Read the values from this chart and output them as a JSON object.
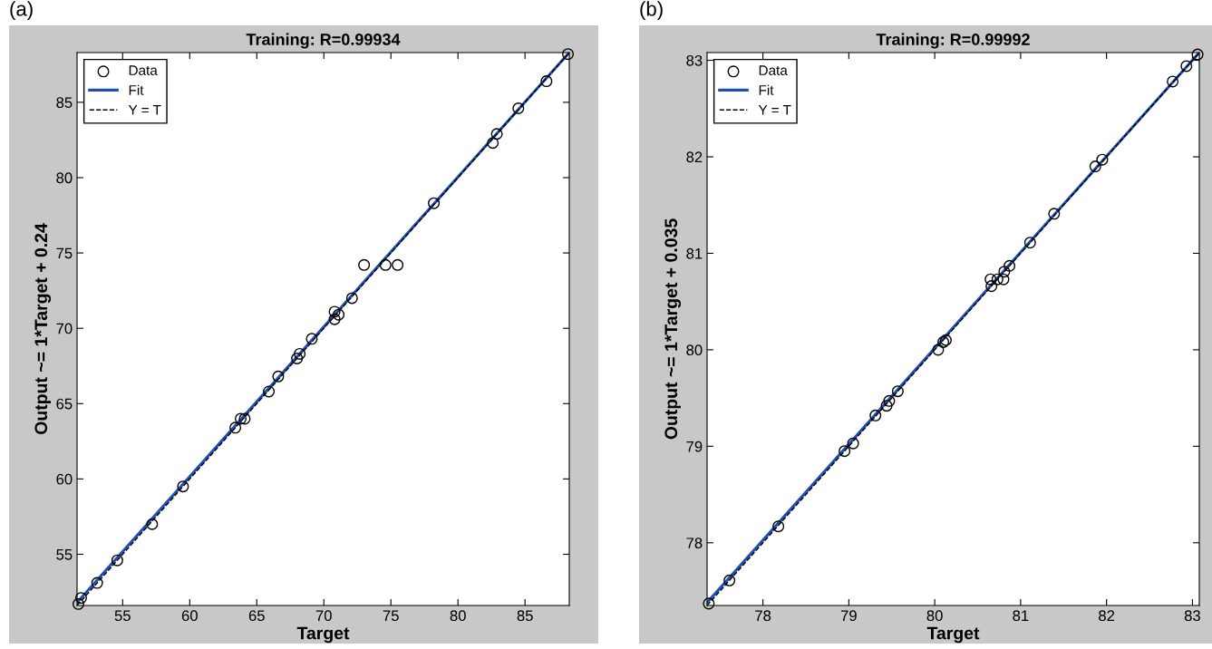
{
  "chart_data": [
    {
      "type": "scatter",
      "title": "Training: R=0.99934",
      "xlabel": "Target",
      "ylabel": "Output ~= 1*Target + 0.24",
      "annotations": [
        "(a)"
      ],
      "xlim": [
        51.6,
        88.3
      ],
      "ylim": [
        51.6,
        88.3
      ],
      "xticks": [
        55,
        60,
        65,
        70,
        75,
        80,
        85
      ],
      "yticks": [
        55,
        60,
        65,
        70,
        75,
        80,
        85
      ],
      "grid": false,
      "legend": "top left",
      "series": [
        {
          "name": "Data",
          "marker": "circle",
          "color": "#000000",
          "x": [
            51.7,
            51.9,
            53.1,
            54.6,
            57.2,
            59.5,
            63.4,
            63.8,
            64.1,
            65.9,
            66.6,
            68.0,
            68.2,
            69.1,
            70.8,
            70.8,
            71.1,
            72.1,
            73.0,
            74.6,
            75.5,
            78.2,
            82.6,
            82.9,
            84.5,
            86.6,
            88.2
          ],
          "values": [
            51.7,
            52.1,
            53.1,
            54.6,
            57.0,
            59.5,
            63.4,
            64.0,
            64.0,
            65.8,
            66.8,
            68.0,
            68.3,
            69.3,
            70.6,
            71.1,
            70.9,
            72.0,
            74.2,
            74.2,
            74.2,
            78.3,
            82.3,
            82.9,
            84.6,
            86.4,
            88.2
          ]
        },
        {
          "name": "Fit",
          "type": "line",
          "line_style": "solid",
          "color": "#1f4fb4",
          "x": [
            51.6,
            88.3
          ],
          "values": [
            51.8,
            88.3
          ]
        },
        {
          "name": "Y = T",
          "type": "line",
          "line_style": "dashed",
          "color": "#000000",
          "x": [
            51.6,
            88.3
          ],
          "values": [
            51.6,
            88.3
          ]
        }
      ]
    },
    {
      "type": "scatter",
      "title": "Training: R=0.99992",
      "xlabel": "Target",
      "ylabel": "Output ~= 1*Target + 0.035",
      "annotations": [
        "(b)"
      ],
      "xlim": [
        77.35,
        83.08
      ],
      "ylim": [
        77.35,
        83.08
      ],
      "xticks": [
        78,
        79,
        80,
        81,
        82,
        83
      ],
      "yticks": [
        78,
        79,
        80,
        81,
        82,
        83
      ],
      "grid": false,
      "legend": "top left",
      "series": [
        {
          "name": "Data",
          "marker": "circle",
          "color": "#000000",
          "x": [
            77.37,
            77.61,
            78.18,
            78.95,
            79.05,
            79.31,
            79.44,
            79.47,
            79.57,
            80.04,
            80.1,
            80.13,
            80.65,
            80.66,
            80.73,
            80.8,
            80.81,
            80.87,
            81.11,
            81.39,
            81.87,
            81.95,
            82.77,
            82.93,
            83.06
          ],
          "values": [
            77.37,
            77.61,
            78.17,
            78.95,
            79.03,
            79.32,
            79.42,
            79.47,
            79.57,
            80.0,
            80.08,
            80.1,
            80.73,
            80.66,
            80.73,
            80.73,
            80.81,
            80.87,
            81.11,
            81.41,
            81.9,
            81.97,
            82.78,
            82.94,
            83.06
          ]
        },
        {
          "name": "Fit",
          "type": "line",
          "line_style": "solid",
          "color": "#1f4fb4",
          "x": [
            77.35,
            83.08
          ],
          "values": [
            77.38,
            83.08
          ]
        },
        {
          "name": "Y = T",
          "type": "line",
          "line_style": "dashed",
          "color": "#000000",
          "x": [
            77.35,
            83.08
          ],
          "values": [
            77.35,
            83.08
          ]
        }
      ]
    }
  ]
}
